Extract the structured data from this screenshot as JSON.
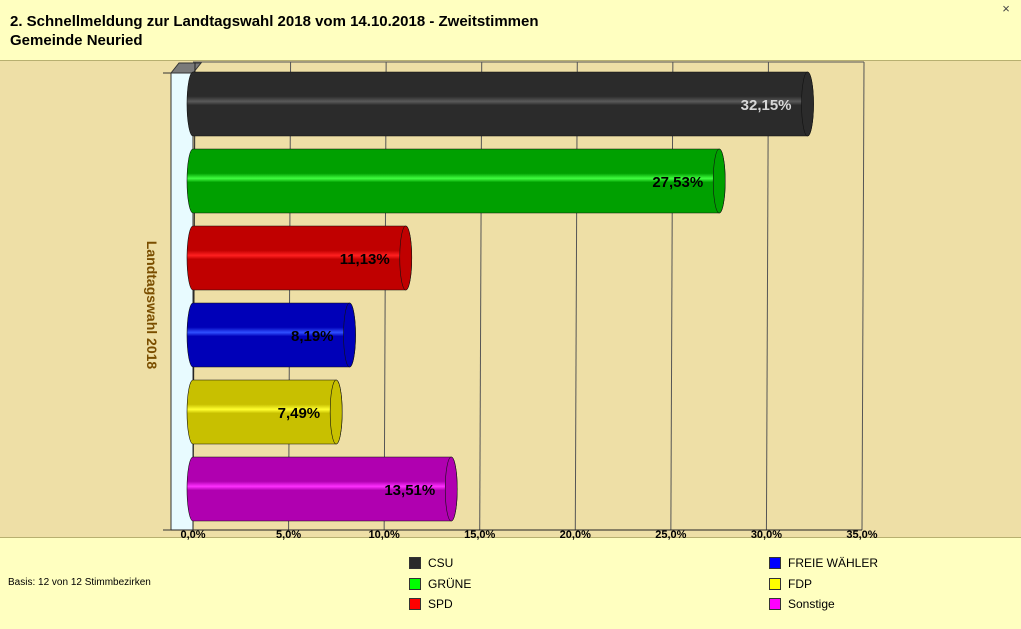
{
  "header": {
    "title_line1": "2. Schnellmeldung zur Landtagswahl 2018 vom 14.10.2018 - Zweitstimmen",
    "title_line2": "Gemeinde Neuried"
  },
  "footer": {
    "basis": "Basis: 12 von 12 Stimmbezirken"
  },
  "chart_data": {
    "type": "bar",
    "orientation": "horizontal",
    "ylabel": "Landtagswahl 2018",
    "categories": [
      "CSU",
      "GRÜNE",
      "SPD",
      "FREIE WÄHLER",
      "FDP",
      "Sonstige"
    ],
    "values": [
      32.15,
      27.53,
      11.13,
      8.19,
      7.49,
      13.51
    ],
    "value_labels": [
      "32,15%",
      "27,53%",
      "11,13%",
      "8,19%",
      "7,49%",
      "13,51%"
    ],
    "colors": [
      "#2b2b2b",
      "#00a000",
      "#c00000",
      "#0000b8",
      "#c8c000",
      "#b000b0"
    ],
    "highlight_colors": [
      "#5a5a5a",
      "#40ff40",
      "#ff2020",
      "#3050ff",
      "#ffff30",
      "#ff30ff"
    ],
    "label_colors": [
      "#d8d8d8",
      "#000000",
      "#000000",
      "#000000",
      "#000000",
      "#000000"
    ],
    "xlim": [
      0,
      35
    ],
    "xticks": [
      0,
      5,
      10,
      15,
      20,
      25,
      30,
      35
    ],
    "xtick_labels": [
      "0,0%",
      "5,0%",
      "10,0%",
      "15,0%",
      "20,0%",
      "25,0%",
      "30,0%",
      "35,0%"
    ],
    "grid": true,
    "legend": {
      "placement": "bottom",
      "items": [
        {
          "label": "CSU",
          "color": "#2b2b2b"
        },
        {
          "label": "GRÜNE",
          "color": "#00ff00"
        },
        {
          "label": "SPD",
          "color": "#ff0000"
        },
        {
          "label": "FREIE WÄHLER",
          "color": "#0000ff"
        },
        {
          "label": "FDP",
          "color": "#ffff00"
        },
        {
          "label": "Sonstige",
          "color": "#ff00ff"
        }
      ]
    }
  }
}
